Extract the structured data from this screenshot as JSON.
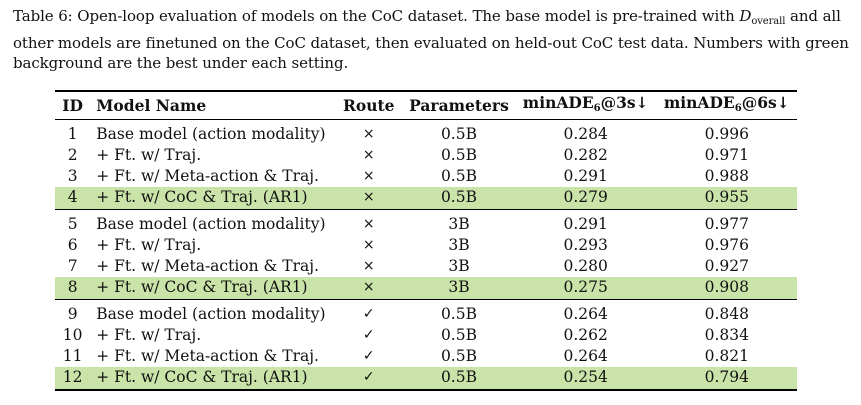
{
  "caption": {
    "line1_a": "Table 6: Open-loop evaluation of models on the CoC dataset. The base model is pre-trained with ",
    "dsym": "D",
    "dsub": "overall",
    "line1_b": " and all",
    "line2": "other models are finetuned on the CoC dataset, then evaluated on held-out CoC test data. Numbers with green",
    "line3": "background are the best under each setting."
  },
  "headers": {
    "id": "ID",
    "model": "Model Name",
    "route": "Route",
    "params": "Parameters",
    "ade3_pre": "minADE",
    "ade3_sub": "6",
    "ade3_post": "@3s↓",
    "ade6_pre": "minADE",
    "ade6_sub": "6",
    "ade6_post": "@6s↓"
  },
  "groups": [
    [
      {
        "id": "1",
        "name": "Base model (action modality)",
        "route": "×",
        "params": "0.5B",
        "ade3": "0.284",
        "ade6": "0.996"
      },
      {
        "id": "2",
        "name": "+ Ft. w/ Traj.",
        "route": "×",
        "params": "0.5B",
        "ade3": "0.282",
        "ade6": "0.971"
      },
      {
        "id": "3",
        "name": "+ Ft. w/ Meta-action & Traj.",
        "route": "×",
        "params": "0.5B",
        "ade3": "0.291",
        "ade6": "0.988"
      },
      {
        "id": "4",
        "name": "+ Ft. w/ CoC & Traj. (AR1)",
        "route": "×",
        "params": "0.5B",
        "ade3": "0.279",
        "ade6": "0.955"
      }
    ],
    [
      {
        "id": "5",
        "name": "Base model (action modality)",
        "route": "×",
        "params": "3B",
        "ade3": "0.291",
        "ade6": "0.977"
      },
      {
        "id": "6",
        "name": "+ Ft. w/ Traj.",
        "route": "×",
        "params": "3B",
        "ade3": "0.293",
        "ade6": "0.976"
      },
      {
        "id": "7",
        "name": "+ Ft. w/ Meta-action & Traj.",
        "route": "×",
        "params": "3B",
        "ade3": "0.280",
        "ade6": "0.927"
      },
      {
        "id": "8",
        "name": "+ Ft. w/ CoC & Traj. (AR1)",
        "route": "×",
        "params": "3B",
        "ade3": "0.275",
        "ade6": "0.908"
      }
    ],
    [
      {
        "id": "9",
        "name": "Base model (action modality)",
        "route": "✓",
        "params": "0.5B",
        "ade3": "0.264",
        "ade6": "0.848"
      },
      {
        "id": "10",
        "name": "+ Ft. w/ Traj.",
        "route": "✓",
        "params": "0.5B",
        "ade3": "0.262",
        "ade6": "0.834"
      },
      {
        "id": "11",
        "name": "+ Ft. w/ Meta-action & Traj.",
        "route": "✓",
        "params": "0.5B",
        "ade3": "0.264",
        "ade6": "0.821"
      },
      {
        "id": "12",
        "name": "+ Ft. w/ CoC & Traj. (AR1)",
        "route": "✓",
        "params": "0.5B",
        "ade3": "0.254",
        "ade6": "0.794"
      }
    ]
  ],
  "colors": {
    "best_highlight": "#c9e3a8"
  }
}
